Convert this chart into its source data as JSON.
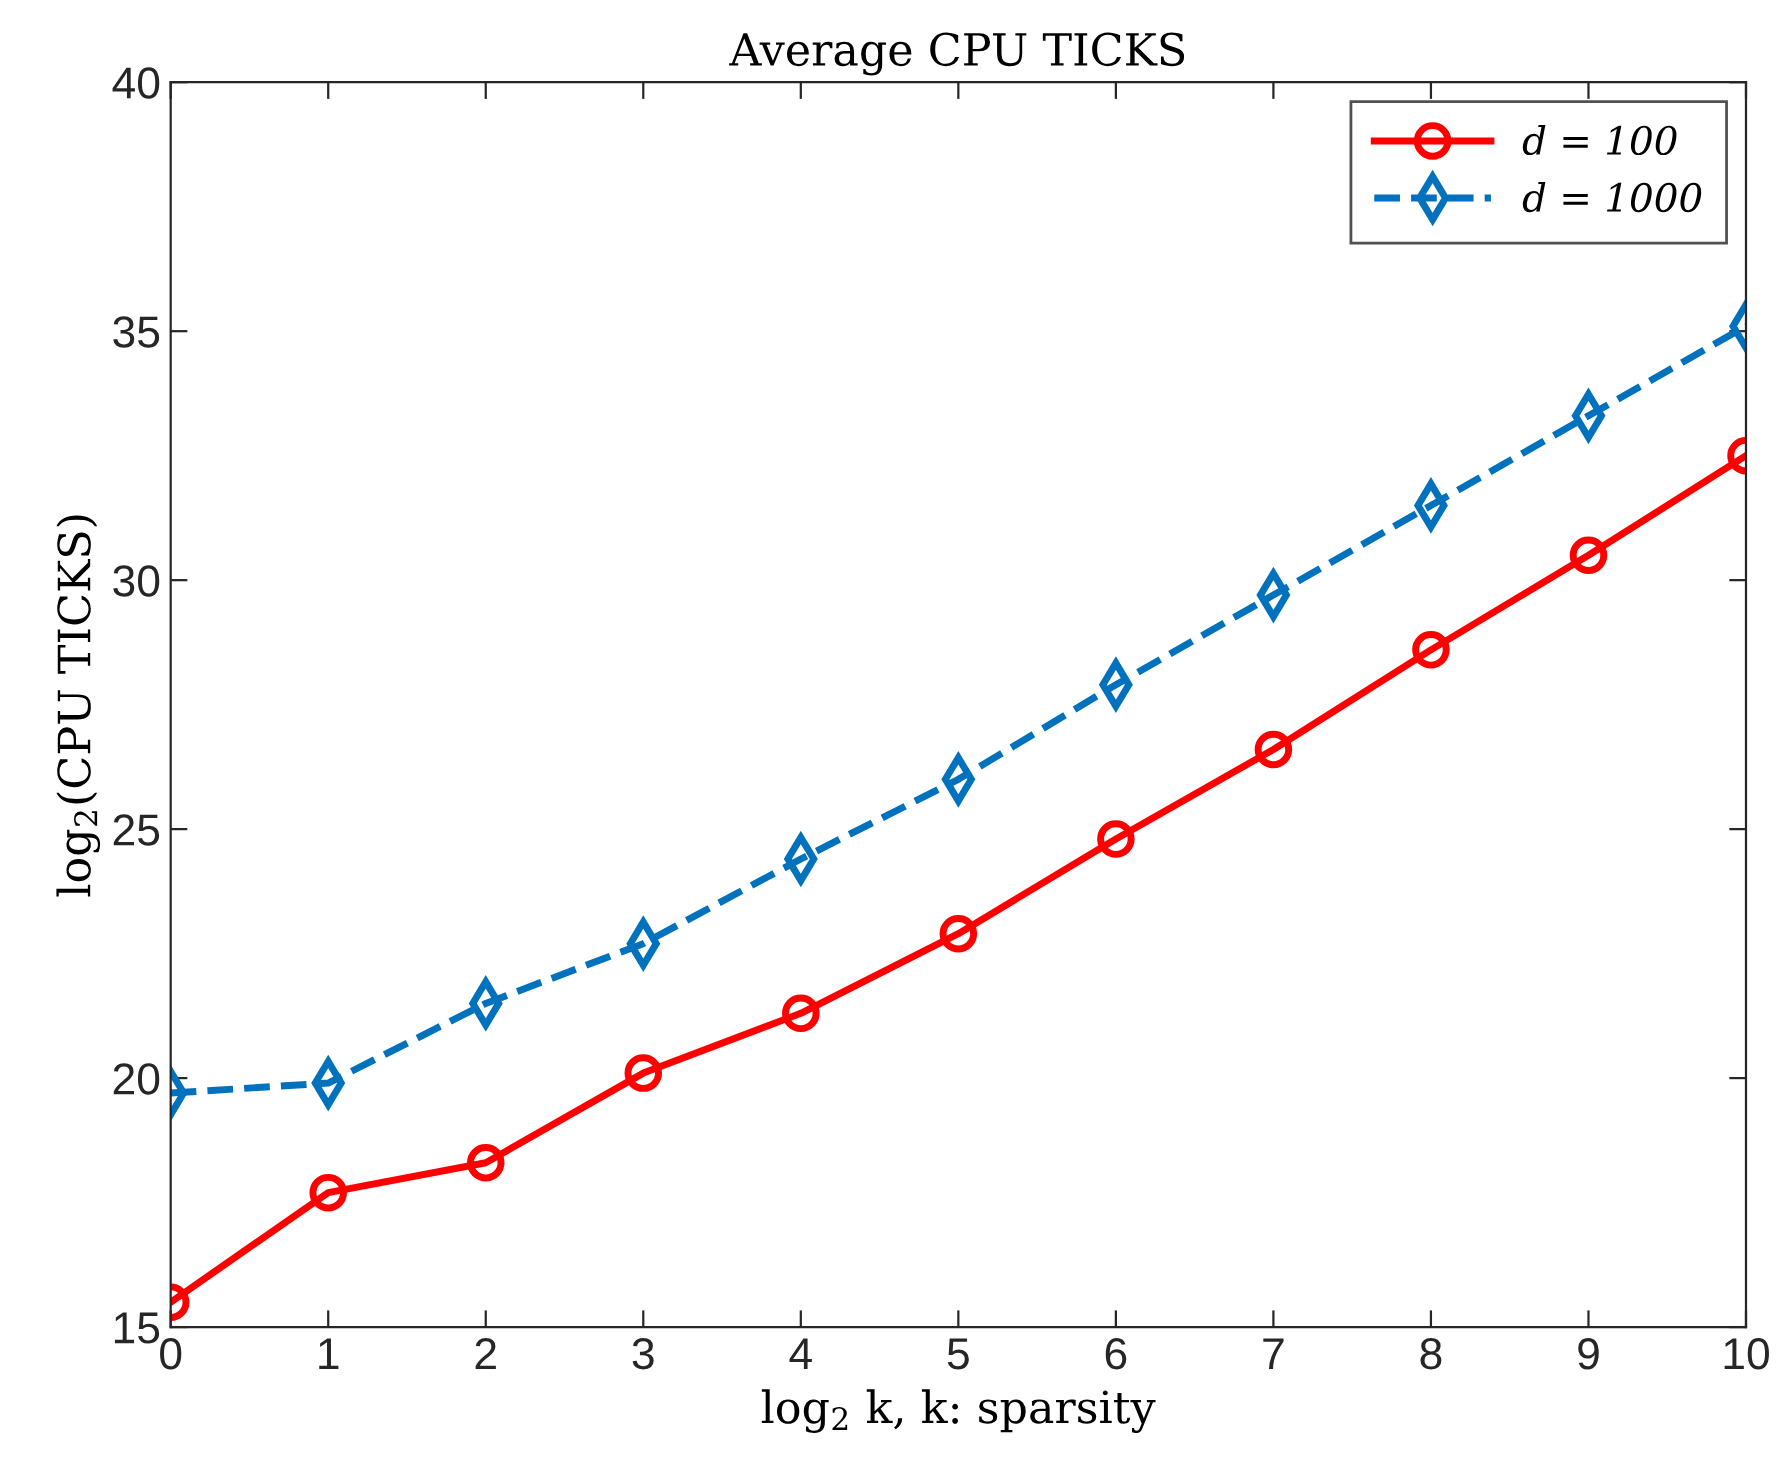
{
  "chart_data": {
    "type": "line",
    "title": "Average CPU TICKS",
    "xlabel": "log$_{2}$ k, k: sparsity",
    "ylabel": "log$_{2}$(CPU TICKS)",
    "x": [
      0,
      1,
      2,
      3,
      4,
      5,
      6,
      7,
      8,
      9,
      10
    ],
    "xlim": [
      0,
      10
    ],
    "xticks": [
      0,
      1,
      2,
      3,
      4,
      5,
      6,
      7,
      8,
      9,
      10
    ],
    "ylim": [
      15,
      40
    ],
    "yticks": [
      15,
      20,
      25,
      30,
      35,
      40
    ],
    "grid": false,
    "legend": "top right",
    "series": [
      {
        "name": "d = 100",
        "color": "#ff0000",
        "marker": "circle",
        "line_style": "solid",
        "values": [
          15.5,
          17.7,
          18.3,
          20.1,
          21.3,
          22.9,
          24.8,
          26.6,
          28.6,
          30.5,
          32.5
        ]
      },
      {
        "name": "d = 1000",
        "color": "#0072bd",
        "marker": "diamond",
        "line_style": "dashed",
        "values": [
          19.7,
          19.9,
          21.5,
          22.7,
          24.4,
          26.0,
          27.9,
          29.7,
          31.5,
          33.3,
          35.1
        ]
      }
    ]
  }
}
